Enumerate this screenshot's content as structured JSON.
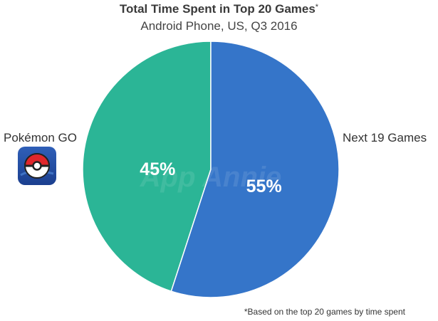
{
  "chart_data": {
    "type": "pie",
    "title": "Total Time Spent in Top 20 Games",
    "title_mark": "*",
    "subtitle": "Android Phone, US, Q3 2016",
    "slices": [
      {
        "label": "Pokémon GO",
        "value": 45,
        "value_label": "45%",
        "color": "#2bb596"
      },
      {
        "label": "Next 19 Games",
        "value": 55,
        "value_label": "55%",
        "color": "#3575c9"
      }
    ],
    "watermark": "App Annie",
    "footnote": "*Based on the top 20 games by time spent"
  },
  "icons": {
    "pokemon_go_icon": "pokeball-icon"
  }
}
